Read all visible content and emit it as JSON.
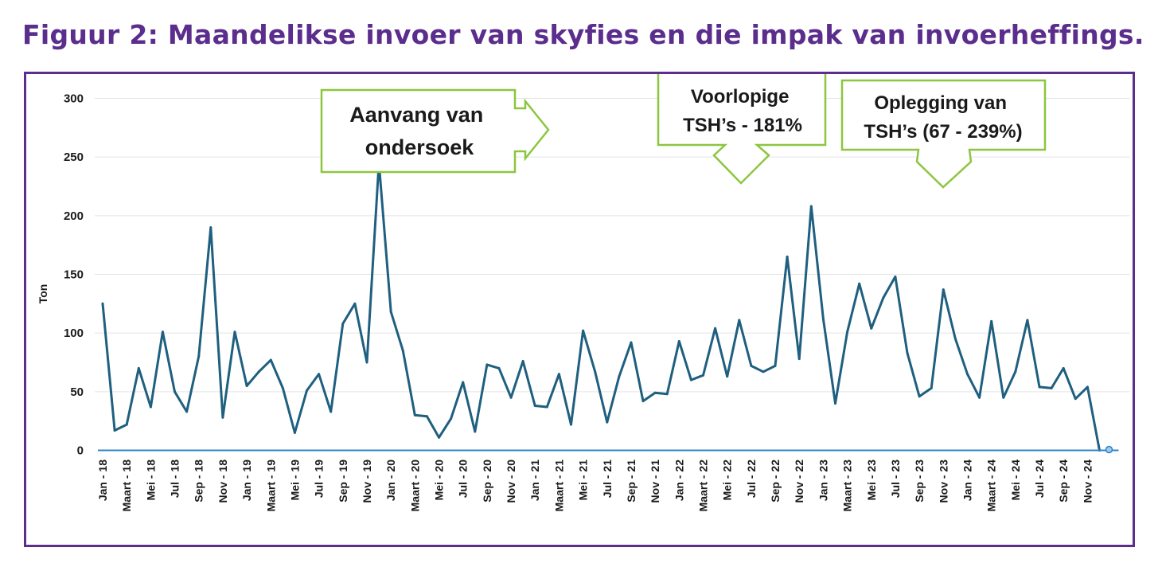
{
  "figure": {
    "title": "Figuur 2: Maandelikse invoer van skyfies en die impak van invoerheffings."
  },
  "colors": {
    "title": "#5b2d8c",
    "frame": "#5b2d8c",
    "series": "#1f5f7f",
    "axis": "#2f86c5",
    "grid": "#e4e4e4",
    "vline_red": "#e8212b",
    "vline_green": "#8cc63f",
    "callout_border": "#8cc63f",
    "trend_arrow": "#e8212b",
    "double_arrow": "#1a1a1a"
  },
  "callouts": {
    "investigation": [
      "Aanvang van",
      "ondersoek"
    ],
    "provisional": [
      "Voorlopige",
      "TSH’s - 181%"
    ],
    "imposition": [
      "Oplegging van",
      "TSH’s (67 - 239%)"
    ]
  },
  "chart_data": {
    "type": "line",
    "title": "",
    "ylabel": "Ton",
    "xlabel": "",
    "ylim": [
      0,
      300
    ],
    "yticks": [
      0,
      50,
      100,
      150,
      200,
      250,
      300
    ],
    "grid": true,
    "legend": "none",
    "x_tick_labels": [
      "Jan - 18",
      "Maart - 18",
      "Mei - 18",
      "Jul - 18",
      "Sep - 18",
      "Nov - 18",
      "Jan - 19",
      "Maart - 19",
      "Mei - 19",
      "Jul - 19",
      "Sep - 19",
      "Nov - 19",
      "Jan - 20",
      "Maart - 20",
      "Mei - 20",
      "Jul - 20",
      "Sep - 20",
      "Nov - 20",
      "Jan - 21",
      "Maart - 21",
      "Mei - 21",
      "Jul - 21",
      "Sep - 21",
      "Nov - 21",
      "Jan - 22",
      "Maart - 22",
      "Mei - 22",
      "Jul - 22",
      "Sep - 22",
      "Nov - 22",
      "Jan - 23",
      "Maart - 23",
      "Mei - 23",
      "Jul - 23",
      "Sep - 23",
      "Nov - 23",
      "Jan - 24",
      "Maart - 24",
      "Mei - 24",
      "Jul - 24",
      "Sep - 24",
      "Nov - 24"
    ],
    "series": [
      {
        "values": [
          125,
          17,
          22,
          70,
          37,
          101,
          50,
          33,
          80,
          190,
          28,
          101,
          55,
          67,
          77,
          53,
          15,
          51,
          65,
          33,
          108,
          125,
          75,
          245,
          118,
          85,
          30,
          29,
          11,
          27,
          58,
          16,
          73,
          70,
          45,
          76,
          38,
          37,
          65,
          22,
          102,
          67,
          24,
          63,
          92,
          42,
          49,
          48,
          93,
          60,
          64,
          104,
          63,
          111,
          72,
          67,
          72,
          165,
          78,
          208,
          112,
          40,
          101,
          142,
          104,
          130,
          148,
          83,
          46,
          53,
          137,
          95,
          65,
          45,
          110,
          45,
          67,
          111,
          54,
          53,
          70,
          44,
          54,
          0
        ]
      }
    ],
    "events": [
      {
        "type": "vertical-line",
        "color": "red",
        "from": [
          115.5,
          3
        ],
        "to": [
          115,
          258
        ]
      },
      {
        "type": "vertical-line",
        "color": "green",
        "from": [
          145,
          0
        ],
        "to": [
          145,
          242
        ]
      },
      {
        "type": "vertical-line",
        "color": "red",
        "from": [
          168,
          0
        ],
        "to": [
          168,
          250
        ]
      },
      {
        "type": "trend-arrow",
        "color": "red",
        "from": [
          201.5,
          176
        ],
        "to": [
          244.5,
          88
        ]
      },
      {
        "type": "double-arrow",
        "color": "black",
        "from": [
          151,
          215
        ],
        "to": [
          158.5,
          215
        ]
      }
    ]
  }
}
